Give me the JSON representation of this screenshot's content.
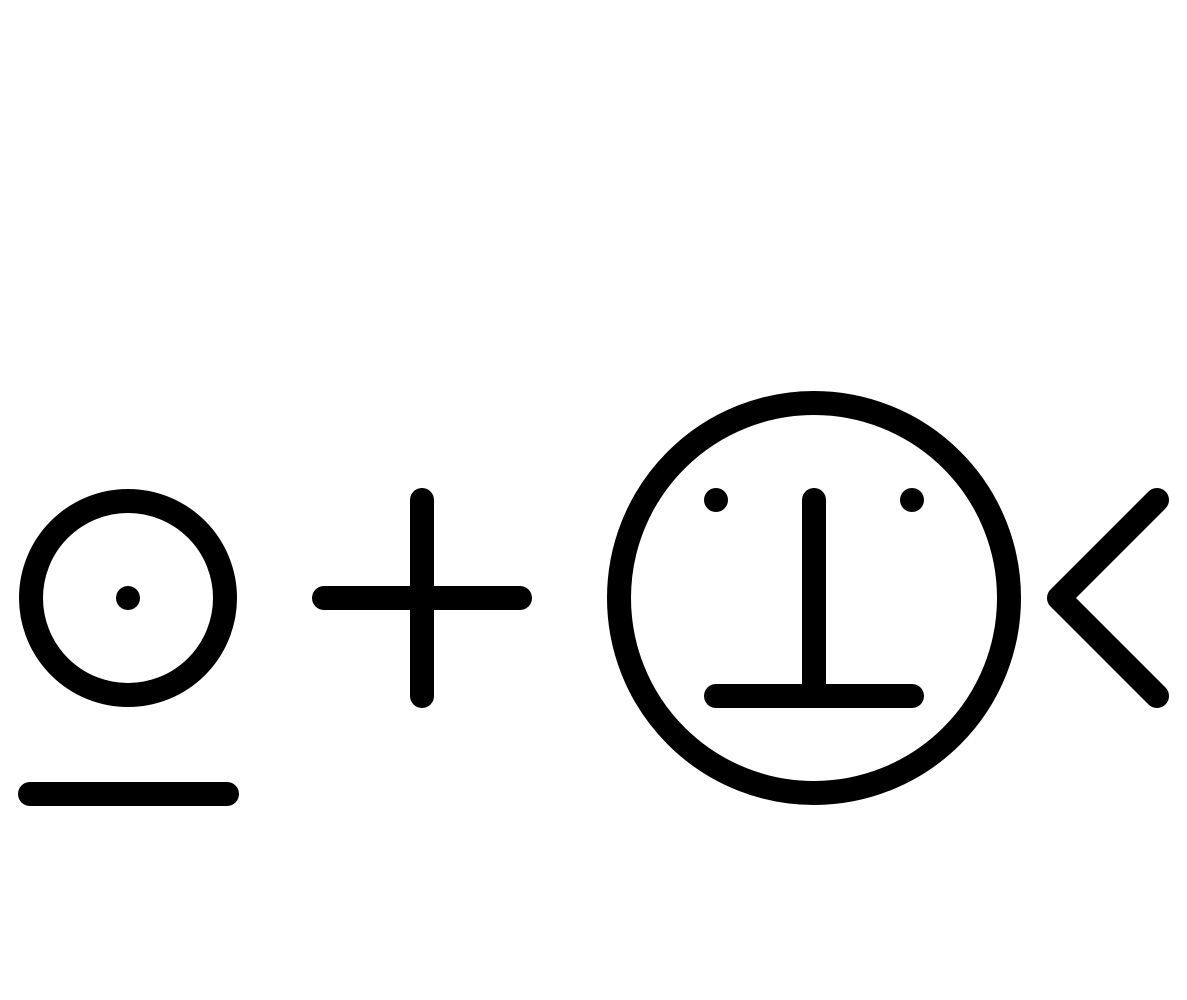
{
  "colors": {
    "background": "#ffffff",
    "stroke": "#000000"
  },
  "glyphs": [
    {
      "name": "sun-over-bar-icon"
    },
    {
      "name": "plus-icon"
    },
    {
      "name": "circled-up-tack-face-icon"
    },
    {
      "name": "less-than-icon"
    }
  ]
}
